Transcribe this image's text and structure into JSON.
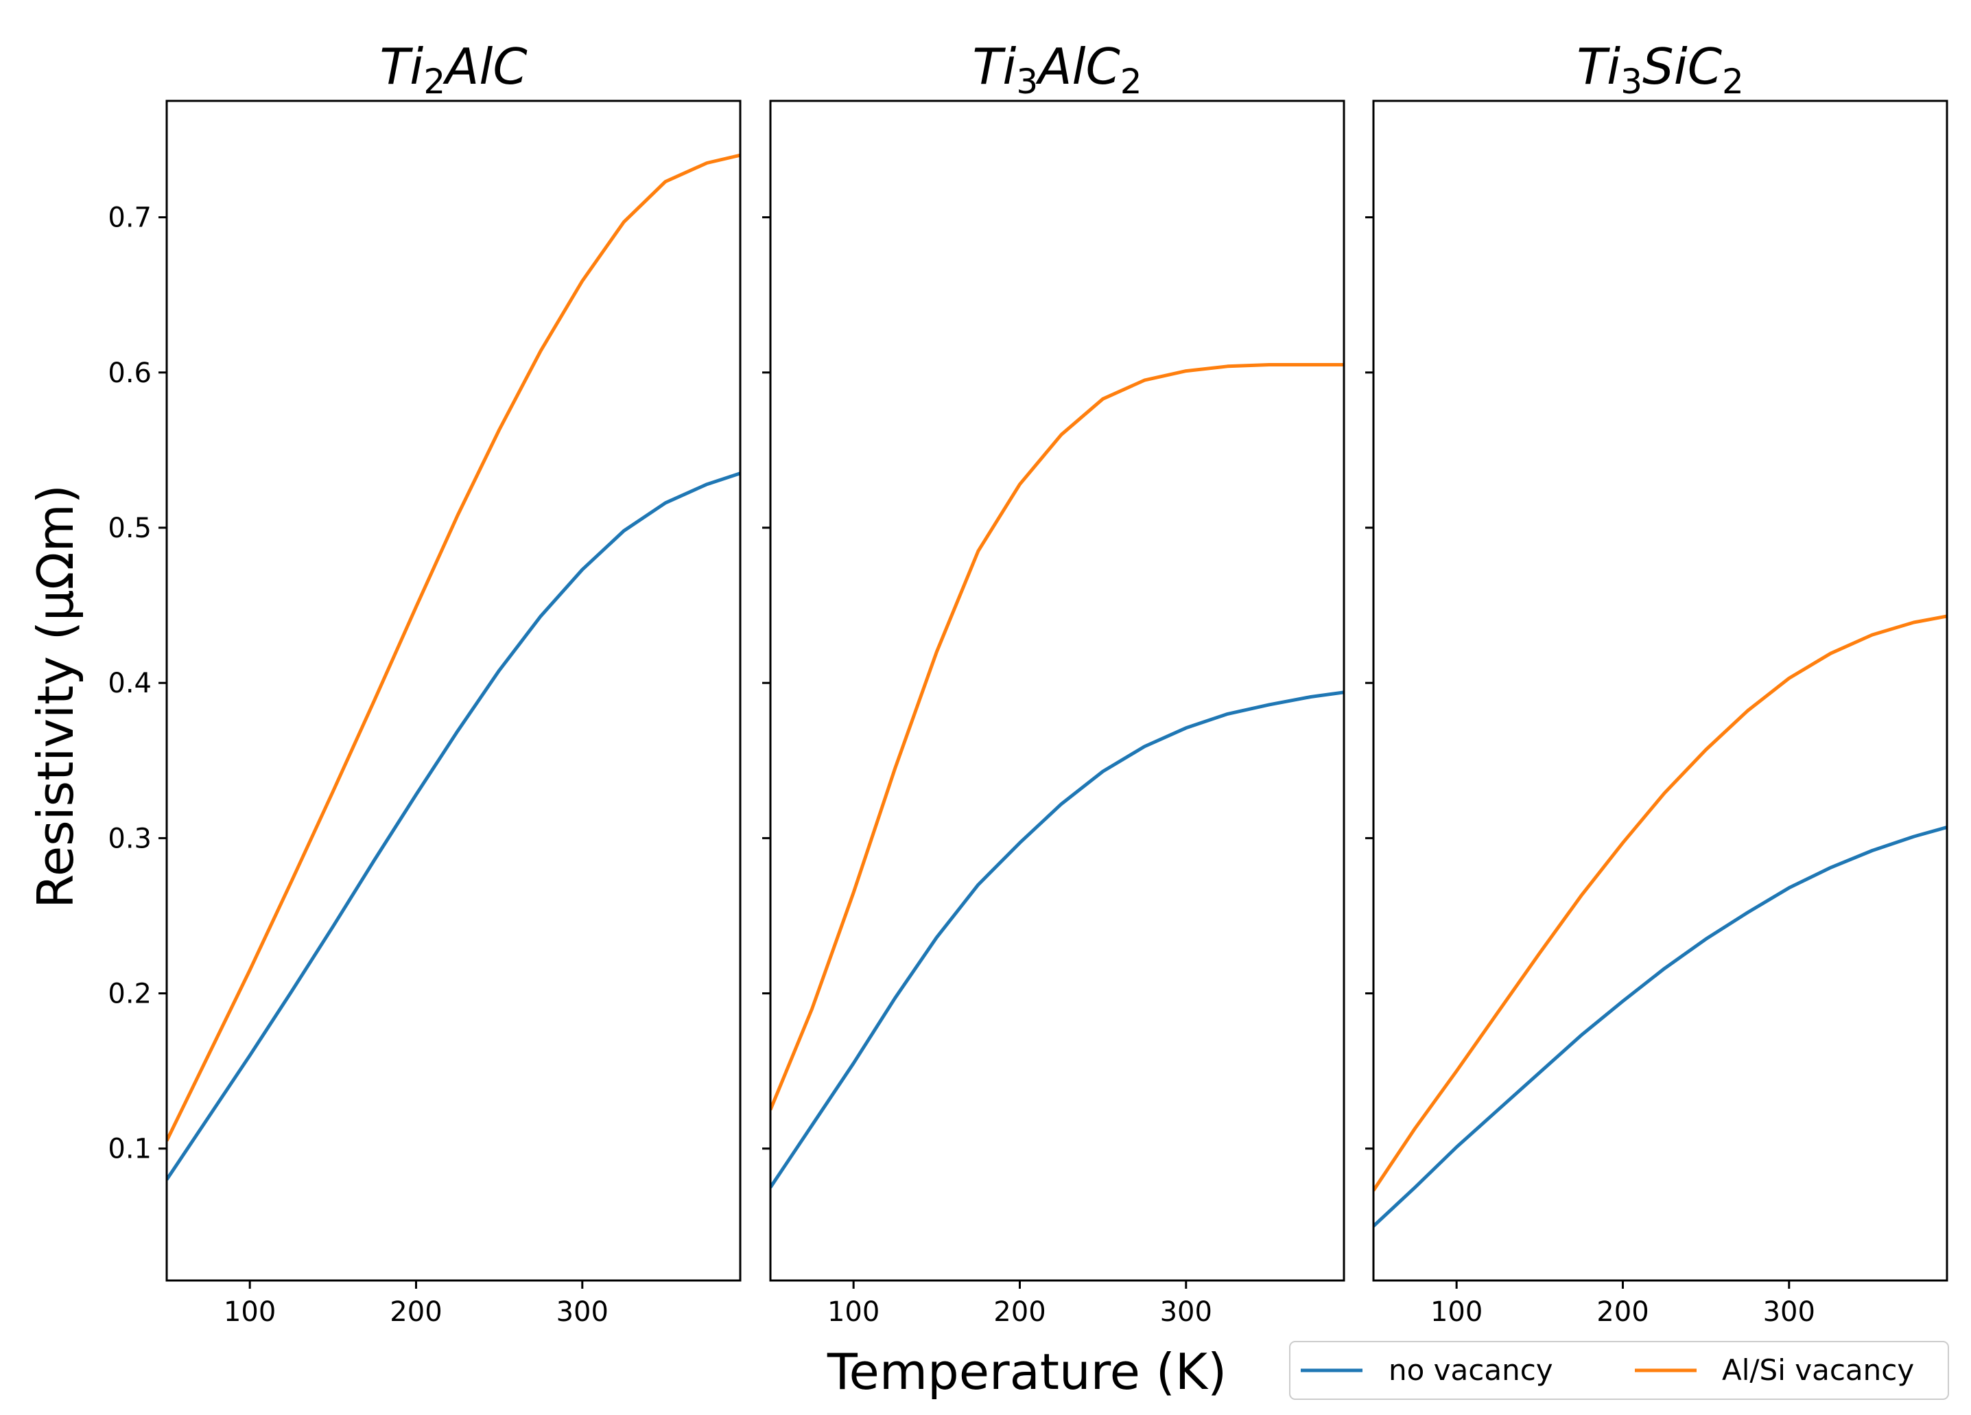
{
  "chart_data": {
    "type": "line",
    "xlabel": "Temperature (K)",
    "ylabel": "Resistivity (μΩm)",
    "legend": {
      "placement": "bottom-right",
      "entries": [
        {
          "label": "no vacancy",
          "color": "#1f77b4"
        },
        {
          "label": "Al/Si vacancy",
          "color": "#ff7f0e"
        }
      ]
    },
    "xlim": [
      50,
      395
    ],
    "ylim": [
      0.015,
      0.775
    ],
    "xticks": [
      100,
      200,
      300
    ],
    "xtick_labels": [
      "100",
      "200",
      "300"
    ],
    "yticks": [
      0.1,
      0.2,
      0.3,
      0.4,
      0.5,
      0.6,
      0.7
    ],
    "ytick_labels": [
      "0.1",
      "0.2",
      "0.3",
      "0.4",
      "0.5",
      "0.6",
      "0.7"
    ],
    "panels": [
      {
        "title": {
          "base": "Ti",
          "sub1": "2",
          "mid": "AlC",
          "sub2": ""
        },
        "series": [
          {
            "name": "no vacancy",
            "color": "#1f77b4",
            "x": [
              50,
              75,
              100,
              125,
              150,
              175,
              200,
              225,
              250,
              275,
              300,
              325,
              350,
              375,
              395
            ],
            "y": [
              0.08,
              0.12,
              0.16,
              0.201,
              0.243,
              0.286,
              0.328,
              0.369,
              0.408,
              0.443,
              0.473,
              0.498,
              0.516,
              0.528,
              0.535
            ]
          },
          {
            "name": "Al/Si vacancy",
            "color": "#ff7f0e",
            "x": [
              50,
              75,
              100,
              125,
              150,
              175,
              200,
              225,
              250,
              275,
              300,
              325,
              350,
              375,
              395
            ],
            "y": [
              0.105,
              0.16,
              0.215,
              0.272,
              0.33,
              0.389,
              0.449,
              0.508,
              0.563,
              0.614,
              0.659,
              0.697,
              0.723,
              0.735,
              0.74
            ]
          }
        ]
      },
      {
        "title": {
          "base": "Ti",
          "sub1": "3",
          "mid": "AlC",
          "sub2": "2"
        },
        "series": [
          {
            "name": "no vacancy",
            "color": "#1f77b4",
            "x": [
              50,
              75,
              100,
              125,
              150,
              175,
              200,
              225,
              250,
              275,
              300,
              325,
              350,
              375,
              395
            ],
            "y": [
              0.075,
              0.115,
              0.155,
              0.197,
              0.236,
              0.27,
              0.297,
              0.322,
              0.343,
              0.359,
              0.371,
              0.38,
              0.386,
              0.391,
              0.394
            ]
          },
          {
            "name": "Al/Si vacancy",
            "color": "#ff7f0e",
            "x": [
              50,
              75,
              100,
              125,
              150,
              175,
              200,
              225,
              250,
              275,
              300,
              325,
              350,
              375,
              395
            ],
            "y": [
              0.125,
              0.19,
              0.265,
              0.345,
              0.42,
              0.485,
              0.528,
              0.56,
              0.583,
              0.595,
              0.601,
              0.604,
              0.605,
              0.605,
              0.605
            ]
          }
        ]
      },
      {
        "title": {
          "base": "Ti",
          "sub1": "3",
          "mid": "SiC",
          "sub2": "2"
        },
        "series": [
          {
            "name": "no vacancy",
            "color": "#1f77b4",
            "x": [
              50,
              75,
              100,
              125,
              150,
              175,
              200,
              225,
              250,
              275,
              300,
              325,
              350,
              375,
              395
            ],
            "y": [
              0.05,
              0.075,
              0.101,
              0.125,
              0.149,
              0.173,
              0.195,
              0.216,
              0.235,
              0.252,
              0.268,
              0.281,
              0.292,
              0.301,
              0.307
            ]
          },
          {
            "name": "Al/Si vacancy",
            "color": "#ff7f0e",
            "x": [
              50,
              75,
              100,
              125,
              150,
              175,
              200,
              225,
              250,
              275,
              300,
              325,
              350,
              375,
              395
            ],
            "y": [
              0.073,
              0.113,
              0.15,
              0.188,
              0.226,
              0.263,
              0.297,
              0.329,
              0.357,
              0.382,
              0.403,
              0.419,
              0.431,
              0.439,
              0.443
            ]
          }
        ]
      }
    ]
  }
}
